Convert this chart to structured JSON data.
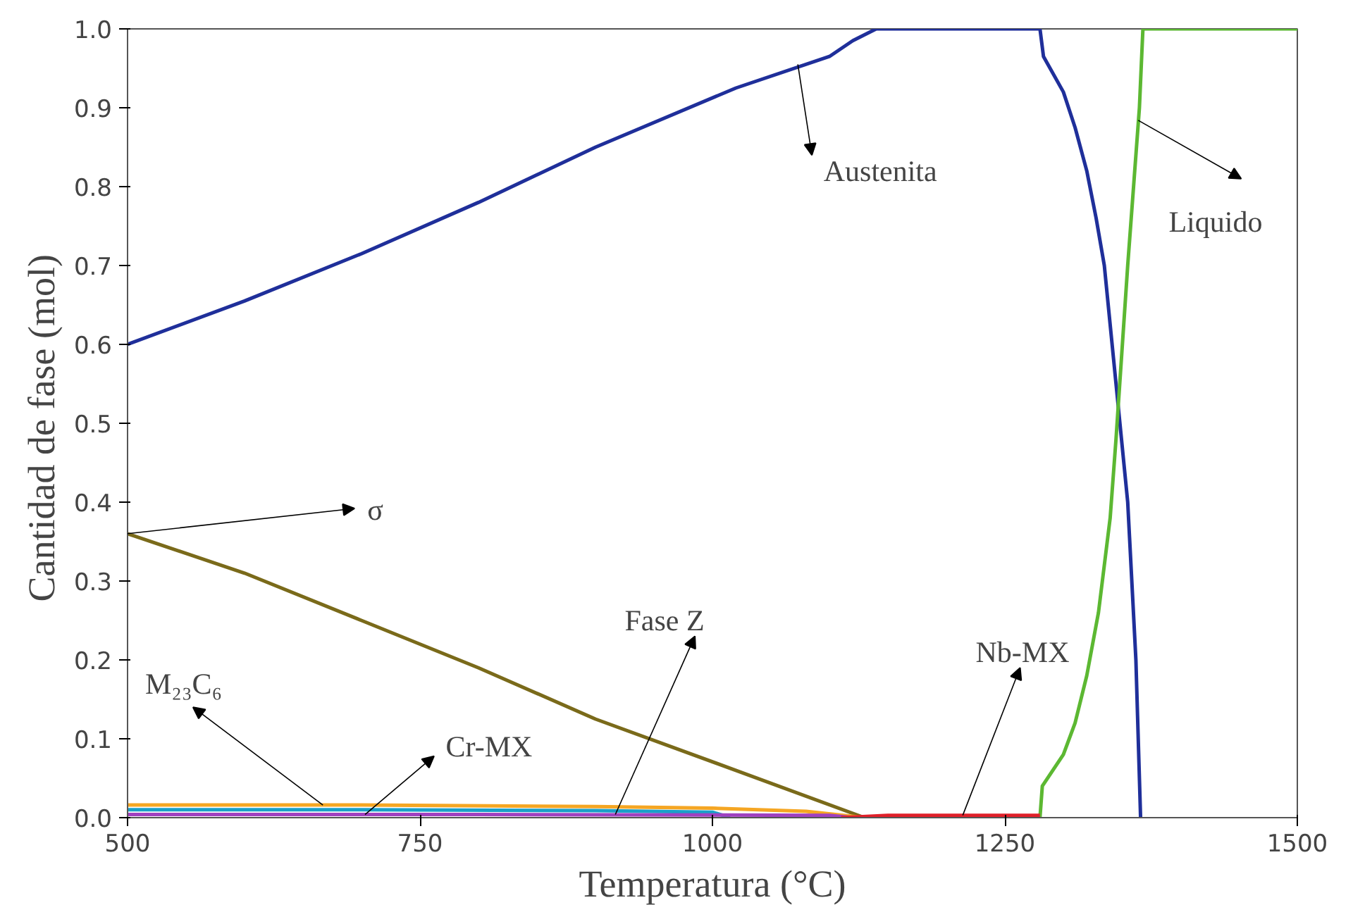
{
  "chart_data": {
    "type": "line",
    "xlabel": "Temperatura (°C)",
    "ylabel": "Cantidad de  fase (mol)",
    "xlim": [
      500,
      1500
    ],
    "ylim": [
      0,
      1.0
    ],
    "xticks": [
      500,
      750,
      1000,
      1250,
      1500
    ],
    "yticks": [
      {
        "value": 0,
        "label": "0.0"
      },
      0.1,
      0.2,
      0.3,
      0.4,
      0.5,
      0.6,
      0.7,
      0.8,
      0.9,
      {
        "value": 1.0,
        "label": "1.0"
      }
    ],
    "grid": false,
    "series": [
      {
        "color": "#1f2f9a",
        "x": [
          500,
          600,
          700,
          800,
          900,
          1020,
          1100,
          1120,
          1140,
          1280,
          1283,
          1300,
          1310,
          1320,
          1328,
          1335,
          1345,
          1355,
          1362,
          1366
        ],
        "values": [
          0.6,
          0.655,
          0.715,
          0.78,
          0.85,
          0.925,
          0.965,
          0.985,
          1.0,
          1.0,
          0.965,
          0.92,
          0.875,
          0.82,
          0.76,
          0.7,
          0.55,
          0.4,
          0.2,
          0.0
        ]
      },
      {
        "color": "#5cb832",
        "x": [
          1280,
          1282,
          1300,
          1310,
          1320,
          1330,
          1340,
          1345,
          1355,
          1365,
          1368,
          1500
        ],
        "values": [
          0.0,
          0.04,
          0.08,
          0.12,
          0.18,
          0.26,
          0.38,
          0.48,
          0.7,
          0.9,
          1.0,
          1.0
        ]
      },
      {
        "color": "#7a6a1a",
        "x": [
          500,
          600,
          700,
          800,
          900,
          1020,
          1130
        ],
        "values": [
          0.36,
          0.31,
          0.25,
          0.19,
          0.125,
          0.06,
          0.0
        ]
      },
      {
        "color": "#f5a623",
        "x": [
          500,
          700,
          900,
          1000,
          1080,
          1130
        ],
        "values": [
          0.016,
          0.016,
          0.014,
          0.012,
          0.008,
          0.0
        ]
      },
      {
        "color": "#1aa0c8",
        "x": [
          500,
          700,
          900,
          1000,
          1015
        ],
        "values": [
          0.01,
          0.01,
          0.009,
          0.007,
          0.0
        ]
      },
      {
        "color": "#a040c0",
        "x": [
          500,
          800,
          1100,
          1120
        ],
        "values": [
          0.004,
          0.004,
          0.003,
          0.0
        ]
      },
      {
        "color": "#e0202a",
        "x": [
          1110,
          1150,
          1200,
          1250,
          1280
        ],
        "values": [
          0.0,
          0.003,
          0.003,
          0.003,
          0.003
        ]
      }
    ],
    "annotations": [
      {
        "text": "Austenita",
        "x": 1073,
        "y": 0.955
      },
      {
        "text": "σ",
        "x": 500,
        "y": 0.36
      },
      {
        "text": "M₂₃C₆",
        "x": 667,
        "y": 0.016
      },
      {
        "text": "Cr-MX",
        "x": 703,
        "y": 0.004
      },
      {
        "text": "Fase Z",
        "x": 917,
        "y": 0.004
      },
      {
        "text": "Nb-MX",
        "x": 1214,
        "y": 0.003
      },
      {
        "text": "Liquido",
        "x": 1364,
        "y": 0.884
      }
    ]
  }
}
